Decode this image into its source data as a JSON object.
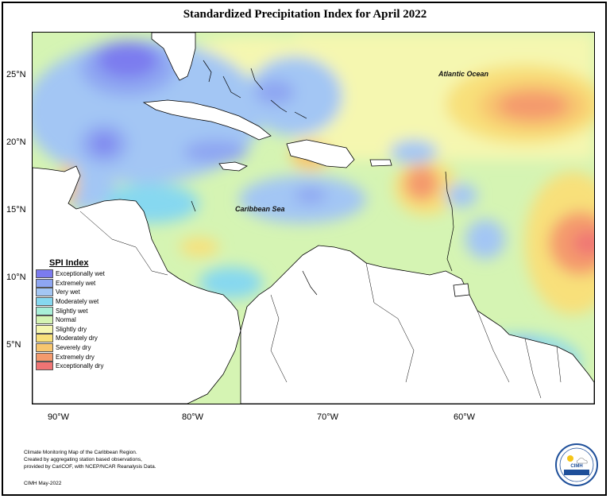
{
  "title": "Standardized Precipitation Index for April 2022",
  "axes": {
    "lat_labels": [
      "25°N",
      "20°N",
      "15°N",
      "10°N",
      "5°N"
    ],
    "lon_labels": [
      "90°W",
      "80°W",
      "70°W",
      "60°W"
    ]
  },
  "places": {
    "atlantic": "Atlantic Ocean",
    "caribbean": "Caribbean Sea"
  },
  "legend": {
    "title": "SPI Index",
    "items": [
      {
        "label": "Exceptionally wet",
        "color": "#7b7bef"
      },
      {
        "label": "Extremely wet",
        "color": "#8ea6f2"
      },
      {
        "label": "Very wet",
        "color": "#a3c6f4"
      },
      {
        "label": "Moderately wet",
        "color": "#86d8f0"
      },
      {
        "label": "Slightly wet",
        "color": "#a8efd8"
      },
      {
        "label": "Normal",
        "color": "#d5f4b3"
      },
      {
        "label": "Slightly dry",
        "color": "#f5f7b0"
      },
      {
        "label": "Moderately dry",
        "color": "#f8e07a"
      },
      {
        "label": "Severely dry",
        "color": "#f8c66f"
      },
      {
        "label": "Extremely dry",
        "color": "#f49a6d"
      },
      {
        "label": "Exceptionally dry",
        "color": "#f07474"
      }
    ]
  },
  "credits": {
    "line1": "Climate Monitoring Map of the Caribbean Region.",
    "line2": "Created by aggregating station based observations,",
    "line3": "provided by CariCOF, with NCEP/NCAR Reanalysis Data.",
    "signature": "CIMH May-2022"
  },
  "logo": {
    "text": "CIMH"
  }
}
